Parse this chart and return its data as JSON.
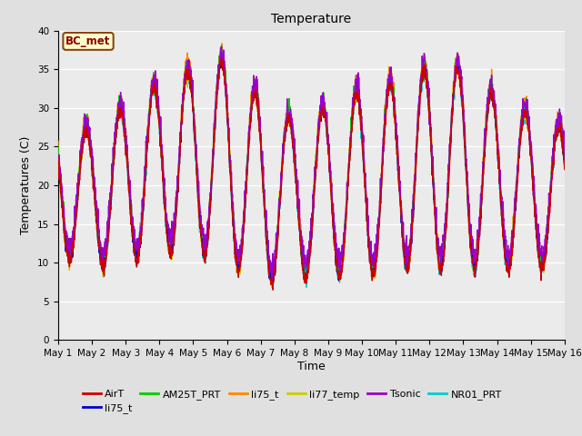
{
  "title": "Temperature",
  "ylabel": "Temperatures (C)",
  "xlabel": "Time",
  "annotation": "BC_met",
  "ylim": [
    0,
    40
  ],
  "n_days": 15,
  "series_colors": {
    "AirT": "#cc0000",
    "li75_t_blue": "#0000cc",
    "AM25T_PRT": "#00cc00",
    "li75_t_orange": "#ff8800",
    "li77_temp": "#cccc00",
    "Tsonic": "#9900cc",
    "NR01_PRT": "#00cccc"
  },
  "legend_entries": [
    {
      "label": "AirT",
      "color": "#cc0000"
    },
    {
      "label": "li75_t",
      "color": "#0000cc"
    },
    {
      "label": "AM25T_PRT",
      "color": "#00cc00"
    },
    {
      "label": "li75_t",
      "color": "#ff8800"
    },
    {
      "label": "li77_temp",
      "color": "#cccc00"
    },
    {
      "label": "Tsonic",
      "color": "#9900cc"
    },
    {
      "label": "NR01_PRT",
      "color": "#00cccc"
    }
  ],
  "tick_labels": [
    "May 1",
    "May 2",
    "May 3",
    "May 4",
    "May 5",
    "May 6",
    "May 7",
    "May 8",
    "May 9",
    "May 10",
    "May 11",
    "May 12",
    "May 13",
    "May 14",
    "May 15",
    "May 16"
  ],
  "background_color": "#e0e0e0",
  "plot_bg_color": "#ebebeb"
}
